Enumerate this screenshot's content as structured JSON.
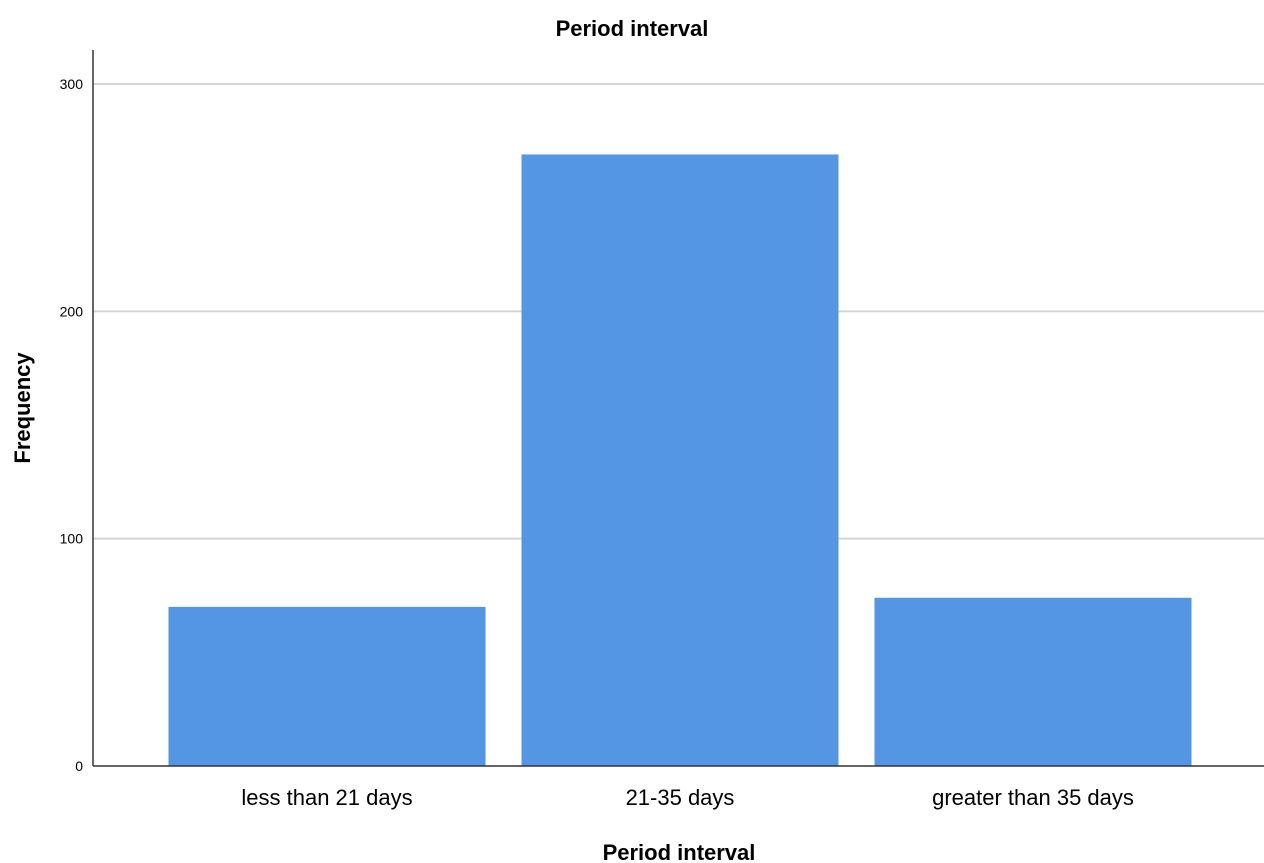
{
  "chart_data": {
    "type": "bar",
    "title": "Period interval",
    "xlabel": "Period interval",
    "ylabel": "Frequency",
    "categories": [
      "less than 21 days",
      "21-35 days",
      "greater than 35 days"
    ],
    "values": [
      70,
      269,
      74
    ],
    "ylim": [
      0,
      300
    ],
    "yticks": [
      0,
      100,
      200,
      300
    ],
    "grid": true,
    "bar_color": "#5596e4"
  }
}
